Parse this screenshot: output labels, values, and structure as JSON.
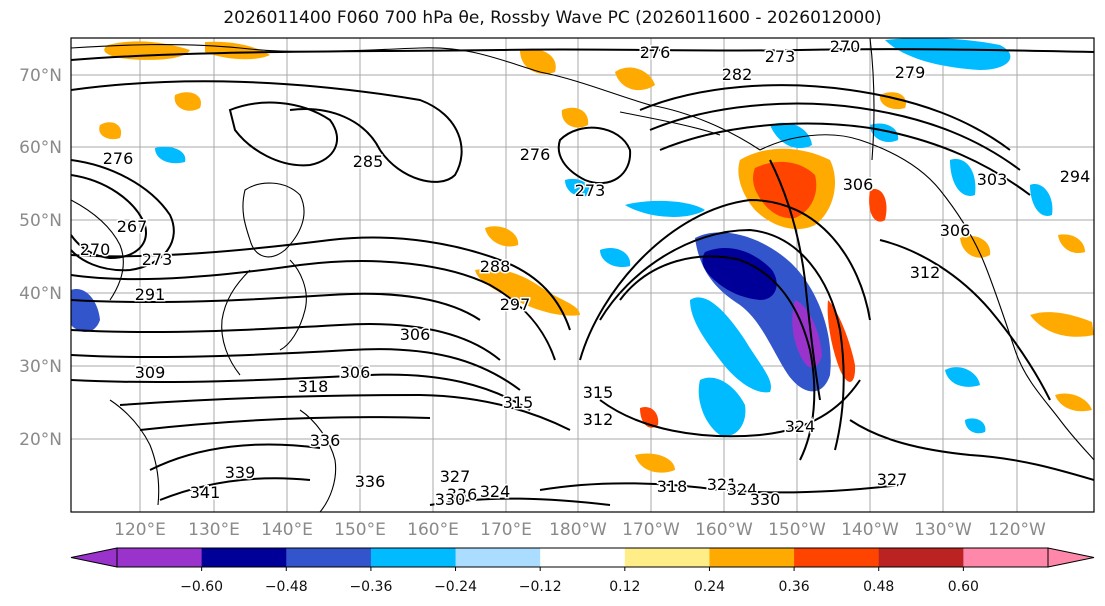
{
  "title": "2026011400 F060 700 hPa θe, Rossby Wave PC (2026011600 - 2026012000)",
  "map": {
    "lat_ticks": [
      "70°N",
      "60°N",
      "50°N",
      "40°N",
      "30°N",
      "20°N"
    ],
    "lon_ticks": [
      "120°E",
      "130°E",
      "140°E",
      "150°E",
      "160°E",
      "170°E",
      "180°W",
      "170°W",
      "160°W",
      "150°W",
      "140°W",
      "130°W",
      "120°W"
    ],
    "contour_labels": [
      "276",
      "273",
      "270",
      "282",
      "279",
      "285",
      "276",
      "276",
      "267",
      "270",
      "273",
      "291",
      "288",
      "297",
      "306",
      "273",
      "306",
      "294",
      "303",
      "306",
      "312",
      "309",
      "306",
      "318",
      "315",
      "312",
      "315",
      "327",
      "336",
      "336",
      "339",
      "341",
      "336",
      "330",
      "324",
      "318",
      "321",
      "324",
      "330",
      "324",
      "327"
    ],
    "colors": {
      "coast": "#000000",
      "grid": "#a8a8a8"
    }
  },
  "colorbar": {
    "bins": [
      "#9933cc",
      "#000099",
      "#3355cc",
      "#00bbff",
      "#aaddff",
      "#ffffff",
      "#ffee88",
      "#ffaa00",
      "#ff4400",
      "#bb2222",
      "#ff88aa"
    ],
    "tick_labels": [
      "−0.60",
      "−0.48",
      "−0.36",
      "−0.24",
      "−0.12",
      "0.12",
      "0.24",
      "0.36",
      "0.48",
      "0.60"
    ]
  }
}
